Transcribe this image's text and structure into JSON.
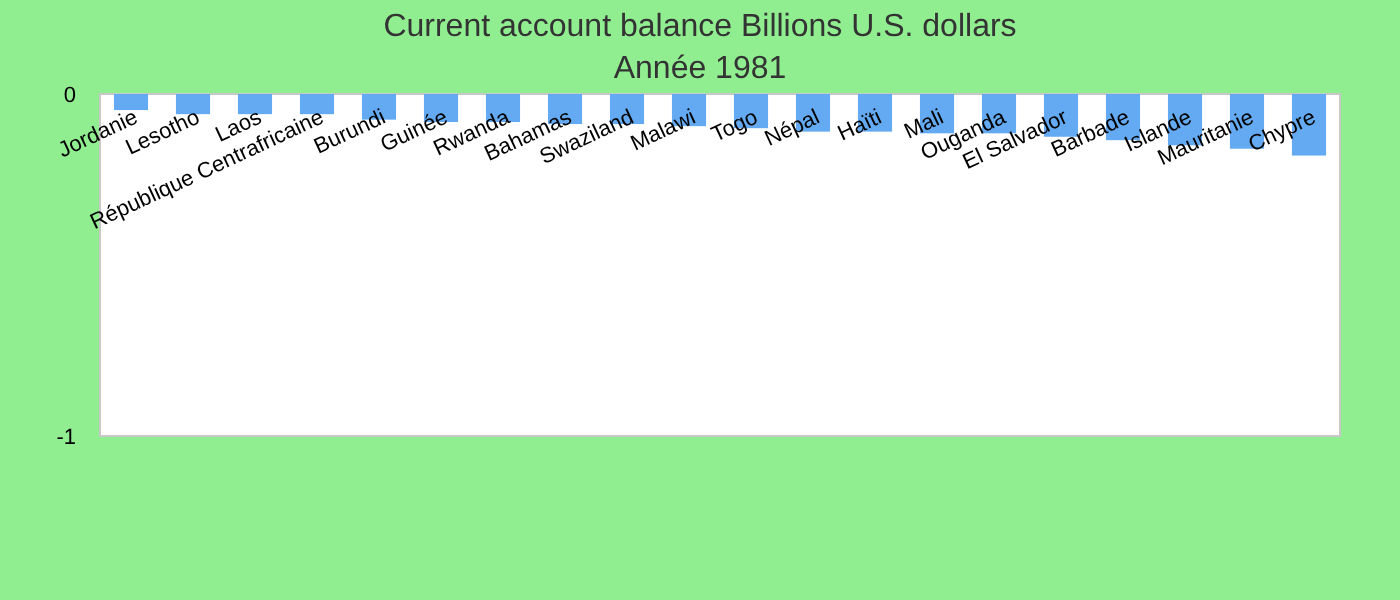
{
  "chart_data": {
    "type": "bar",
    "title": "Current account balance Billions U.S. dollars",
    "subtitle": "Année 1981",
    "categories": [
      "Jordanie",
      "Lesotho",
      "Laos",
      "République Centrafricaine",
      "Burundi",
      "Guinée",
      "Rwanda",
      "Bahamas",
      "Swaziland",
      "Malawi",
      "Togo",
      "Népal",
      "Haïti",
      "Mali",
      "Ouganda",
      "El Salvador",
      "Barbade",
      "Islande",
      "Mauritanie",
      "Chypre"
    ],
    "values": [
      -0.047,
      -0.059,
      -0.059,
      -0.059,
      -0.075,
      -0.082,
      -0.082,
      -0.088,
      -0.088,
      -0.094,
      -0.1,
      -0.11,
      -0.11,
      -0.115,
      -0.115,
      -0.125,
      -0.135,
      -0.15,
      -0.16,
      -0.18
    ],
    "color": "#63aaf2",
    "ylim": [
      -1,
      0
    ],
    "yticks": [
      -1,
      0
    ]
  }
}
